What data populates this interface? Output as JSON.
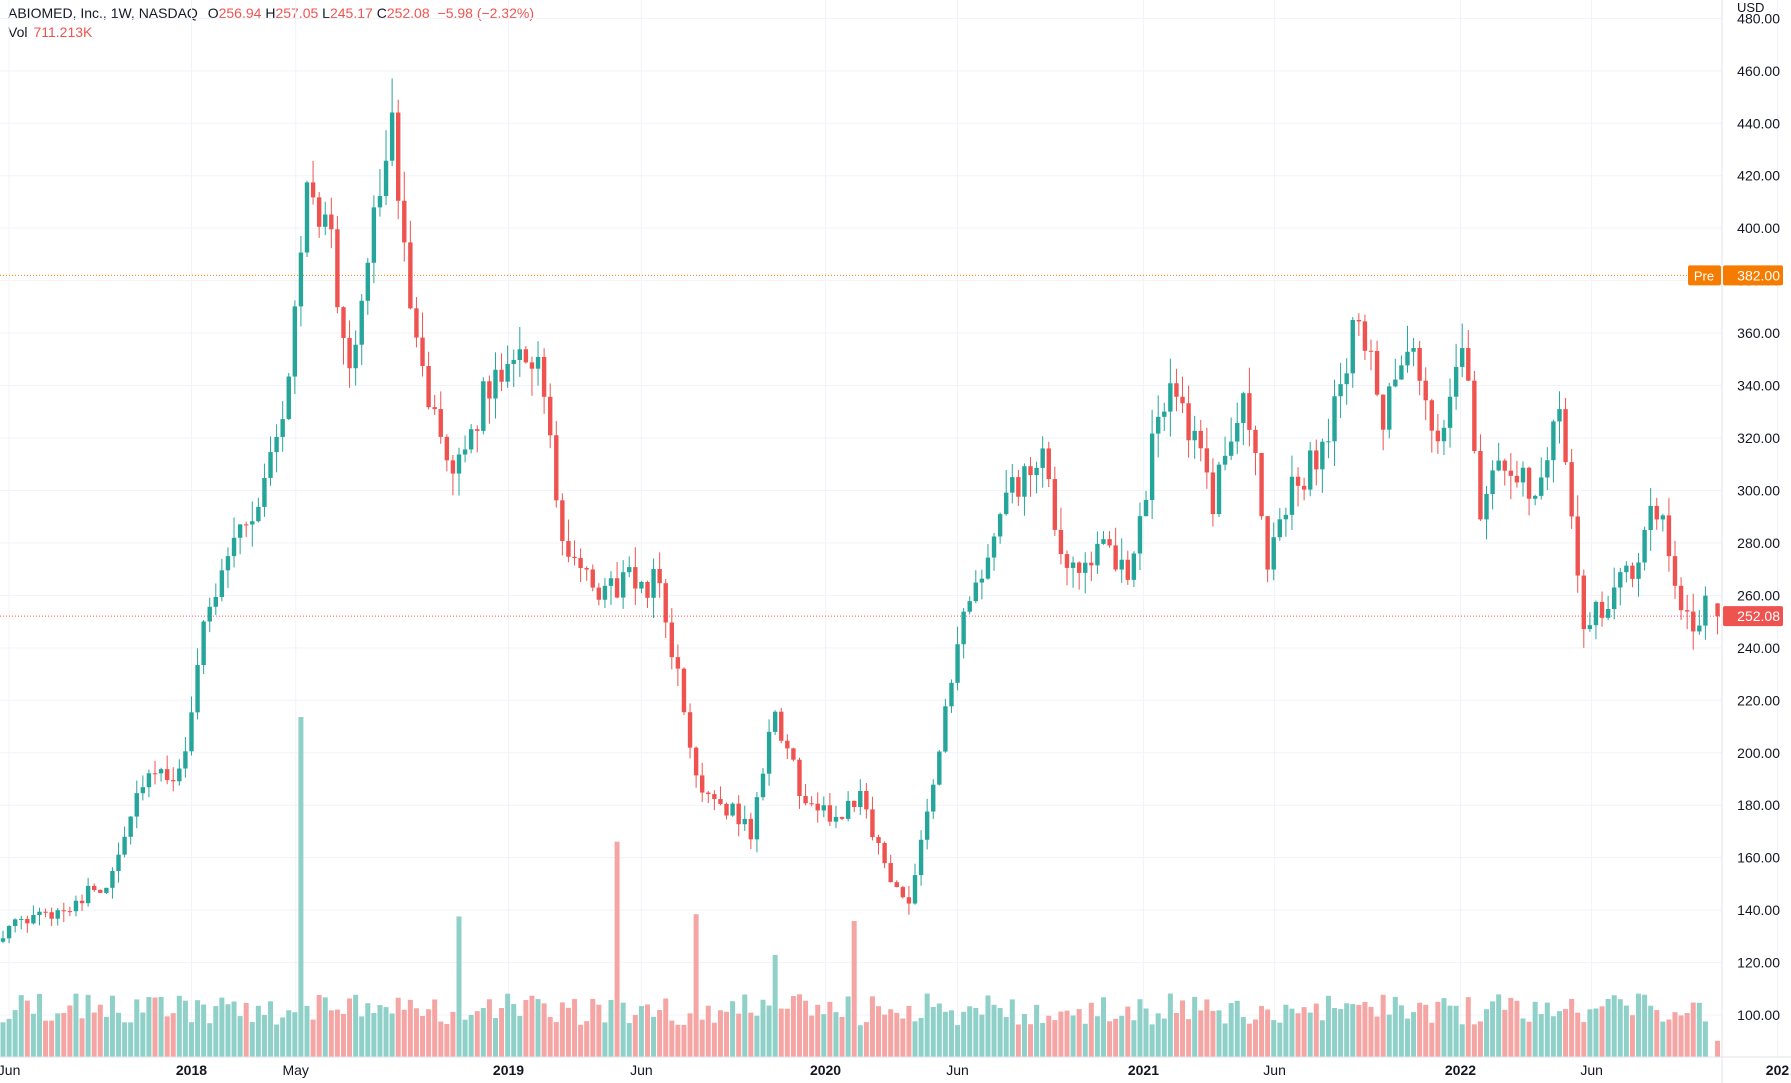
{
  "legend": {
    "symbol": "ABIOMED, Inc., 1W, NASDAQ",
    "open_label": "O",
    "open": "256.94",
    "high_label": "H",
    "high": "257.05",
    "low_label": "L",
    "low": "245.17",
    "close_label": "C",
    "close": "252.08",
    "change": "−5.98 (−2.32%)",
    "vol_label": "Vol",
    "vol": "711.213K"
  },
  "currency": "USD",
  "colors": {
    "up": "#26a69a",
    "down": "#ef5350",
    "up_vol": "#8fd0c9",
    "down_vol": "#f5a6a4",
    "pre": "#f57c00",
    "grid": "#f0f3fa",
    "axis_border": "#e0e3eb"
  },
  "chart_data": {
    "type": "candlestick",
    "interval": "1W",
    "y_axis": {
      "ticks": [
        "100.00",
        "120.00",
        "140.00",
        "160.00",
        "180.00",
        "200.00",
        "220.00",
        "240.00",
        "260.00",
        "280.00",
        "300.00",
        "320.00",
        "340.00",
        "360.00",
        "380.00",
        "400.00",
        "420.00",
        "440.00",
        "460.00",
        "480.00"
      ],
      "range": [
        84,
        487
      ]
    },
    "x_axis": {
      "ticks": [
        {
          "label": "Jun",
          "year": false
        },
        {
          "label": "2018",
          "year": true
        },
        {
          "label": "May",
          "year": false
        },
        {
          "label": "2019",
          "year": true
        },
        {
          "label": "Jun",
          "year": false
        },
        {
          "label": "2020",
          "year": true
        },
        {
          "label": "Jun",
          "year": false
        },
        {
          "label": "2021",
          "year": true
        },
        {
          "label": "Jun",
          "year": false
        },
        {
          "label": "2022",
          "year": true
        },
        {
          "label": "Jun",
          "year": false
        },
        {
          "label": "202",
          "year": true
        }
      ]
    },
    "lines": [
      {
        "label": "Pre",
        "value": 382.0,
        "value_label": "382.00"
      },
      {
        "label": "",
        "value": 252.08,
        "value_label": "252.08"
      }
    ],
    "anchors": [
      [
        "2017-05-29",
        132
      ],
      [
        "2017-07-31",
        140
      ],
      [
        "2017-09-25",
        150
      ],
      [
        "2017-11-06",
        190
      ],
      [
        "2017-12-18",
        190
      ],
      [
        "2018-01-15",
        245
      ],
      [
        "2018-02-12",
        280
      ],
      [
        "2018-03-19",
        295
      ],
      [
        "2018-04-23",
        340
      ],
      [
        "2018-05-14",
        420
      ],
      [
        "2018-06-11",
        395
      ],
      [
        "2018-07-02",
        340
      ],
      [
        "2018-07-30",
        410
      ],
      [
        "2018-08-20",
        435
      ],
      [
        "2018-09-03",
        390
      ],
      [
        "2018-10-08",
        325
      ],
      [
        "2018-10-29",
        300
      ],
      [
        "2018-11-26",
        330
      ],
      [
        "2019-01-07",
        355
      ],
      [
        "2019-02-04",
        350
      ],
      [
        "2019-03-04",
        280
      ],
      [
        "2019-04-08",
        260
      ],
      [
        "2019-05-13",
        265
      ],
      [
        "2019-06-24",
        265
      ],
      [
        "2019-08-05",
        190
      ],
      [
        "2019-09-09",
        180
      ],
      [
        "2019-10-07",
        170
      ],
      [
        "2019-11-04",
        215
      ],
      [
        "2019-12-09",
        180
      ],
      [
        "2020-01-13",
        175
      ],
      [
        "2020-02-10",
        185
      ],
      [
        "2020-03-16",
        150
      ],
      [
        "2020-04-06",
        145
      ],
      [
        "2020-05-04",
        190
      ],
      [
        "2020-06-08",
        250
      ],
      [
        "2020-07-06",
        275
      ],
      [
        "2020-08-03",
        300
      ],
      [
        "2020-09-07",
        310
      ],
      [
        "2020-10-05",
        265
      ],
      [
        "2020-11-09",
        280
      ],
      [
        "2020-12-14",
        265
      ],
      [
        "2021-01-11",
        315
      ],
      [
        "2021-02-01",
        345
      ],
      [
        "2021-02-22",
        325
      ],
      [
        "2021-03-22",
        295
      ],
      [
        "2021-04-26",
        340
      ],
      [
        "2021-05-24",
        275
      ],
      [
        "2021-06-21",
        300
      ],
      [
        "2021-08-02",
        320
      ],
      [
        "2021-09-06",
        370
      ],
      [
        "2021-10-04",
        325
      ],
      [
        "2021-11-01",
        355
      ],
      [
        "2021-12-06",
        315
      ],
      [
        "2022-01-03",
        360
      ],
      [
        "2022-01-24",
        295
      ],
      [
        "2022-02-21",
        310
      ],
      [
        "2022-03-28",
        300
      ],
      [
        "2022-04-25",
        335
      ],
      [
        "2022-05-23",
        250
      ],
      [
        "2022-06-20",
        255
      ],
      [
        "2022-07-25",
        275
      ],
      [
        "2022-08-15",
        295
      ],
      [
        "2022-09-19",
        250
      ],
      [
        "2022-10-17",
        256.94
      ]
    ],
    "last_bar": {
      "open": 256.94,
      "high": 257.05,
      "low": 245.17,
      "close": 252.08,
      "volume": 711213
    },
    "volume_spikes": [
      {
        "date": "2018-05-07",
        "volume": 15000000
      },
      {
        "date": "2018-11-05",
        "volume": 6200000
      },
      {
        "date": "2019-05-06",
        "volume": 9500000
      },
      {
        "date": "2019-08-05",
        "volume": 6300000
      },
      {
        "date": "2019-11-04",
        "volume": 4500000
      },
      {
        "date": "2020-02-03",
        "volume": 6000000
      }
    ]
  }
}
